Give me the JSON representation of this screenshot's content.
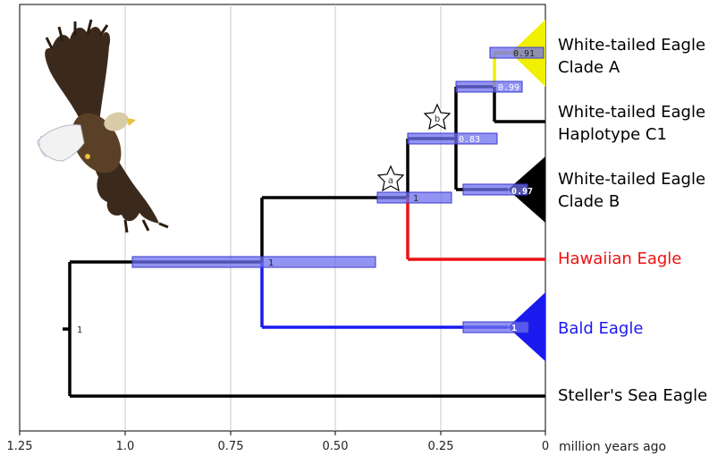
{
  "axis": {
    "ticks": [
      "1.25",
      "1.0",
      "0.75",
      "0.50",
      "0.25",
      "0"
    ],
    "unit": "million years ago",
    "range_mya": [
      1.25,
      0
    ],
    "grid": true
  },
  "colors": {
    "black": "#000000",
    "red": "#ee1111",
    "blue": "#1a1aee",
    "yellow": "#f0f000",
    "hpd_bar": "#6f6fee"
  },
  "taxa": [
    {
      "id": "wte-a",
      "lines": [
        "White-tailed Eagle",
        "Clade A"
      ],
      "color": "#000000",
      "collapsed_clade": true,
      "clade_color": "#f0f000"
    },
    {
      "id": "wte-c1",
      "lines": [
        "White-tailed Eagle",
        "Haplotype C1"
      ],
      "color": "#000000",
      "collapsed_clade": false
    },
    {
      "id": "wte-b",
      "lines": [
        "White-tailed Eagle",
        "Clade B"
      ],
      "color": "#000000",
      "collapsed_clade": true,
      "clade_color": "#000000"
    },
    {
      "id": "hawaiian",
      "lines": [
        "Hawaiian Eagle"
      ],
      "color": "#ee1111",
      "collapsed_clade": false
    },
    {
      "id": "bald",
      "lines": [
        "Bald Eagle"
      ],
      "color": "#1a1aee",
      "collapsed_clade": true,
      "clade_color": "#1a1aee"
    },
    {
      "id": "stellers",
      "lines": [
        "Steller's Sea Eagle"
      ],
      "color": "#000000",
      "collapsed_clade": false
    }
  ],
  "nodes": [
    {
      "id": "root",
      "age_mya": 1.14,
      "support": "1",
      "hpd_mya": null
    },
    {
      "id": "n1",
      "age_mya": 0.68,
      "support": "1",
      "hpd_mya": [
        0.99,
        0.41
      ]
    },
    {
      "id": "n2",
      "age_mya": 0.33,
      "support": "1",
      "hpd_mya": [
        0.4,
        0.22
      ],
      "star": "a"
    },
    {
      "id": "n3",
      "age_mya": 0.21,
      "support": "0.83",
      "hpd_mya": [
        0.33,
        0.12
      ],
      "star": "b"
    },
    {
      "id": "n4",
      "age_mya": 0.12,
      "support": "0.99",
      "hpd_mya": [
        0.21,
        0.08
      ]
    },
    {
      "id": "wte-a-crown",
      "age_mya": 0.11,
      "support": "0.91",
      "hpd_mya": [
        0.13,
        0.05
      ]
    },
    {
      "id": "wte-b-crown",
      "age_mya": 0.1,
      "support": "0.97",
      "hpd_mya": [
        0.19,
        0.04
      ]
    },
    {
      "id": "bald-crown",
      "age_mya": 0.05,
      "support": "1",
      "hpd_mya": [
        0.19,
        0.04
      ]
    }
  ],
  "stars": [
    "a",
    "b"
  ],
  "image": {
    "subject": "eagle-in-flight"
  }
}
